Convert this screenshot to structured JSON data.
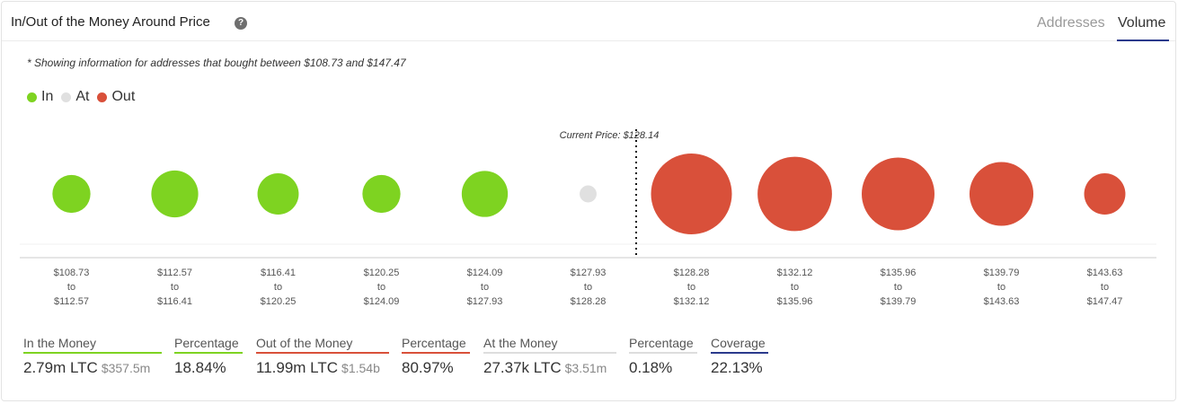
{
  "header": {
    "title": "In/Out of the Money Around Price",
    "help_glyph": "?",
    "tabs": [
      {
        "label": "Addresses",
        "active": false
      },
      {
        "label": "Volume",
        "active": true
      }
    ]
  },
  "note": "* Showing information for addresses that bought between $108.73 and $147.47",
  "legend": [
    {
      "label": "In",
      "color": "#7ed321"
    },
    {
      "label": "At",
      "color": "#e0e0e0"
    },
    {
      "label": "Out",
      "color": "#d9503a"
    }
  ],
  "chart_data": {
    "type": "bubble",
    "current_price_label": "Current Price: $128.14",
    "current_price_after_index": 5,
    "bins": [
      {
        "from": "$108.73",
        "to": "$112.57",
        "status": "in",
        "rel_size": 0.47
      },
      {
        "from": "$112.57",
        "to": "$116.41",
        "status": "in",
        "rel_size": 0.58
      },
      {
        "from": "$116.41",
        "to": "$120.25",
        "status": "in",
        "rel_size": 0.51
      },
      {
        "from": "$120.25",
        "to": "$124.09",
        "status": "in",
        "rel_size": 0.47
      },
      {
        "from": "$124.09",
        "to": "$127.93",
        "status": "in",
        "rel_size": 0.57
      },
      {
        "from": "$127.93",
        "to": "$128.28",
        "status": "at",
        "rel_size": 0.21
      },
      {
        "from": "$128.28",
        "to": "$132.12",
        "status": "out",
        "rel_size": 1.0
      },
      {
        "from": "$132.12",
        "to": "$135.96",
        "status": "out",
        "rel_size": 0.92
      },
      {
        "from": "$135.96",
        "to": "$139.79",
        "status": "out",
        "rel_size": 0.9
      },
      {
        "from": "$139.79",
        "to": "$143.63",
        "status": "out",
        "rel_size": 0.79
      },
      {
        "from": "$143.63",
        "to": "$147.47",
        "status": "out",
        "rel_size": 0.51
      }
    ],
    "to_word": "to",
    "colors": {
      "in": "#7ed321",
      "at": "#e0e0e0",
      "out": "#d9503a"
    }
  },
  "stats": [
    {
      "label": "In the Money",
      "value": "2.79m LTC",
      "sub": "$357.5m",
      "color": "#7ed321"
    },
    {
      "label": "Percentage",
      "value": "18.84%",
      "sub": "",
      "color": "#7ed321"
    },
    {
      "label": "Out of the Money",
      "value": "11.99m LTC",
      "sub": "$1.54b",
      "color": "#d9503a"
    },
    {
      "label": "Percentage",
      "value": "80.97%",
      "sub": "",
      "color": "#d9503a"
    },
    {
      "label": "At the Money",
      "value": "27.37k LTC",
      "sub": "$3.51m",
      "color": "#dddddd"
    },
    {
      "label": "Percentage",
      "value": "0.18%",
      "sub": "",
      "color": "#dddddd"
    },
    {
      "label": "Coverage",
      "value": "22.13%",
      "sub": "",
      "color": "#2b3a8c"
    }
  ]
}
